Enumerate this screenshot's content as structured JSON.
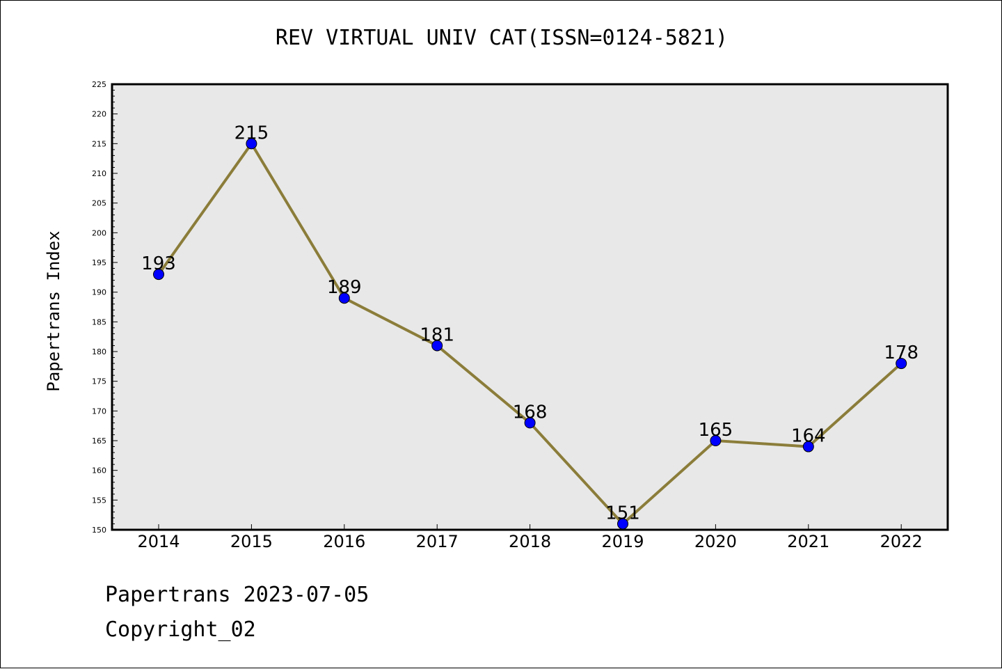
{
  "chart_data": {
    "type": "line",
    "title": "REV VIRTUAL UNIV CAT(ISSN=0124-5821)",
    "xlabel": "",
    "ylabel": "Papertrans Index",
    "categories": [
      "2014",
      "2015",
      "2016",
      "2017",
      "2018",
      "2019",
      "2020",
      "2021",
      "2022"
    ],
    "series": [
      {
        "values": [
          193,
          215,
          189,
          181,
          168,
          151,
          165,
          164,
          178
        ]
      }
    ],
    "ylim": [
      150,
      225
    ],
    "ytick_step": 5,
    "grid": false,
    "data_labels": true,
    "colors": {
      "line": "#8b7d3a",
      "marker": "#0000ff",
      "plot_background": "#e8e8e8"
    }
  },
  "footer": {
    "line1": "Papertrans 2023-07-05",
    "line2": "Copyright_02"
  }
}
